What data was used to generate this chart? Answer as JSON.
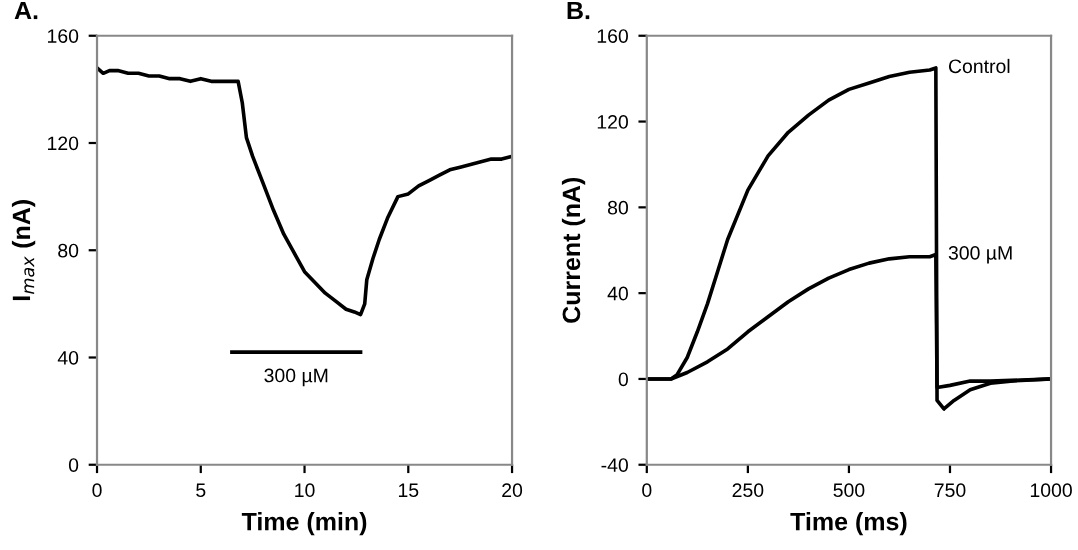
{
  "chart_data": [
    {
      "type": "line",
      "title": "A.",
      "xlabel": "Time (min)",
      "ylabel": "I$_{max}$ (nA)",
      "xlim": [
        0,
        20
      ],
      "xticks": [
        0,
        5,
        10,
        15,
        20
      ],
      "ylim": [
        0,
        160
      ],
      "yticks": [
        0,
        40,
        80,
        120,
        160
      ],
      "grid": false,
      "legend": false,
      "annotations": [
        "300 µM"
      ],
      "series": [
        {
          "color": "#000000",
          "x": [
            0,
            0.3,
            0.6,
            1,
            1.5,
            2,
            2.5,
            3,
            3.5,
            4,
            4.5,
            5,
            5.5,
            6,
            6.5,
            6.8,
            7,
            7.2,
            7.5,
            8,
            8.5,
            9,
            9.5,
            10,
            10.5,
            11,
            11.5,
            12,
            12.4,
            12.7,
            12.9,
            13,
            13.3,
            13.6,
            14,
            14.5,
            15,
            15.5,
            16,
            16.5,
            17,
            17.5,
            18,
            18.5,
            19,
            19.5,
            20
          ],
          "values": [
            148,
            146,
            147,
            147,
            146,
            146,
            145,
            145,
            144,
            144,
            143,
            144,
            143,
            143,
            143,
            143,
            135,
            122,
            115,
            105,
            95,
            86,
            79,
            72,
            68,
            64,
            61,
            58,
            57,
            56,
            60,
            69,
            77,
            84,
            92,
            100,
            101,
            104,
            106,
            108,
            110,
            111,
            112,
            113,
            114,
            114,
            115
          ]
        },
        {
          "color": "#000000",
          "x": [
            6.5,
            12.7
          ],
          "values": [
            42,
            42
          ]
        }
      ]
    },
    {
      "type": "line",
      "title": "B.",
      "xlabel": "Time (ms)",
      "ylabel": "Current (nA)",
      "xlim": [
        0,
        1000
      ],
      "xticks": [
        0,
        250,
        500,
        750,
        1000
      ],
      "ylim": [
        -40,
        160
      ],
      "yticks": [
        {
          "value": -40,
          "label": "-40"
        },
        0,
        40,
        80,
        120,
        160
      ],
      "grid": false,
      "legend": false,
      "series": [
        {
          "name": "Control",
          "color": "#000000",
          "x": [
            0,
            30,
            60,
            75,
            100,
            125,
            150,
            175,
            200,
            250,
            300,
            350,
            400,
            450,
            500,
            550,
            600,
            650,
            700,
            715,
            718,
            735,
            760,
            800,
            850,
            900,
            1000
          ],
          "values": [
            0,
            0,
            0,
            2,
            10,
            22,
            35,
            50,
            65,
            88,
            104,
            115,
            123,
            130,
            135,
            138,
            141,
            143,
            144,
            145,
            -10,
            -14,
            -10,
            -5,
            -2,
            -1,
            0
          ]
        },
        {
          "name": "300 µM",
          "color": "#000000",
          "x": [
            0,
            30,
            60,
            100,
            150,
            200,
            250,
            300,
            350,
            400,
            450,
            500,
            550,
            600,
            650,
            700,
            715,
            718,
            750,
            800,
            850,
            1000
          ],
          "values": [
            0,
            0,
            0,
            3,
            8,
            14,
            22,
            29,
            36,
            42,
            47,
            51,
            54,
            56,
            57,
            57,
            58,
            -4,
            -3,
            -1,
            -1,
            0
          ]
        }
      ]
    }
  ]
}
